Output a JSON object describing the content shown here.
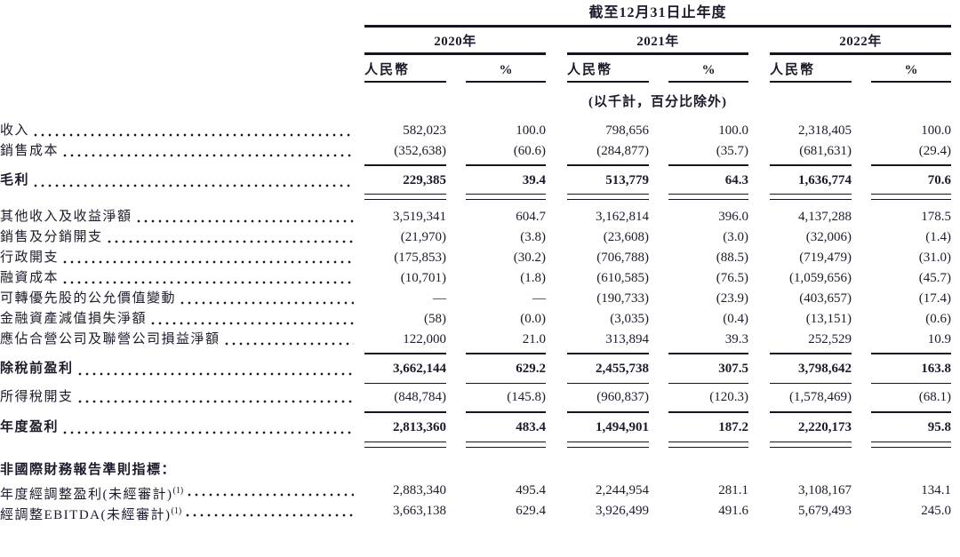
{
  "doc": {
    "title": "截至12月31日止年度",
    "unit_note": "(以千計，百分比除外)",
    "col_rmb": "人民幣",
    "col_pct": "%",
    "years": [
      "2020年",
      "2021年",
      "2022年"
    ],
    "rows": [
      {
        "label": "收入",
        "values": [
          "582,023",
          "100.0",
          "798,656",
          "100.0",
          "2,318,405",
          "100.0"
        ]
      },
      {
        "label": "銷售成本",
        "values": [
          "(352,638)",
          "(60.6)",
          "(284,877)",
          "(35.7)",
          "(681,631)",
          "(29.4)"
        ]
      },
      {
        "label": "毛利",
        "values": [
          "229,385",
          "39.4",
          "513,779",
          "64.3",
          "1,636,774",
          "70.6"
        ]
      },
      {
        "label": "其他收入及收益淨額",
        "values": [
          "3,519,341",
          "604.7",
          "3,162,814",
          "396.0",
          "4,137,288",
          "178.5"
        ]
      },
      {
        "label": "銷售及分銷開支",
        "values": [
          "(21,970)",
          "(3.8)",
          "(23,608)",
          "(3.0)",
          "(32,006)",
          "(1.4)"
        ]
      },
      {
        "label": "行政開支",
        "values": [
          "(175,853)",
          "(30.2)",
          "(706,788)",
          "(88.5)",
          "(719,479)",
          "(31.0)"
        ]
      },
      {
        "label": "融資成本",
        "values": [
          "(10,701)",
          "(1.8)",
          "(610,585)",
          "(76.5)",
          "(1,059,656)",
          "(45.7)"
        ]
      },
      {
        "label": "可轉優先股的公允價值變動",
        "values": [
          "—",
          "—",
          "(190,733)",
          "(23.9)",
          "(403,657)",
          "(17.4)"
        ]
      },
      {
        "label": "金融資產減值損失淨額",
        "values": [
          "(58)",
          "(0.0)",
          "(3,035)",
          "(0.4)",
          "(13,151)",
          "(0.6)"
        ]
      },
      {
        "label": "應佔合營公司及聯營公司損益淨額",
        "values": [
          "122,000",
          "21.0",
          "313,894",
          "39.3",
          "252,529",
          "10.9"
        ]
      },
      {
        "label": "除稅前盈利",
        "values": [
          "3,662,144",
          "629.2",
          "2,455,738",
          "307.5",
          "3,798,642",
          "163.8"
        ]
      },
      {
        "label": "所得稅開支",
        "values": [
          "(848,784)",
          "(145.8)",
          "(960,837)",
          "(120.3)",
          "(1,578,469)",
          "(68.1)"
        ]
      },
      {
        "label": "年度盈利",
        "values": [
          "2,813,360",
          "483.4",
          "1,494,901",
          "187.2",
          "2,220,173",
          "95.8"
        ]
      },
      {
        "label": "非國際財務報告準則指標："
      },
      {
        "label": "年度經調整盈利(未經審計)",
        "sup": "(1)",
        "values": [
          "2,883,340",
          "495.4",
          "2,244,954",
          "281.1",
          "3,108,167",
          "134.1"
        ]
      },
      {
        "label": "經調整EBITDA(未經審計)",
        "sup": "(1)",
        "values": [
          "3,663,138",
          "629.4",
          "3,926,499",
          "491.6",
          "5,679,493",
          "245.0"
        ]
      }
    ]
  }
}
